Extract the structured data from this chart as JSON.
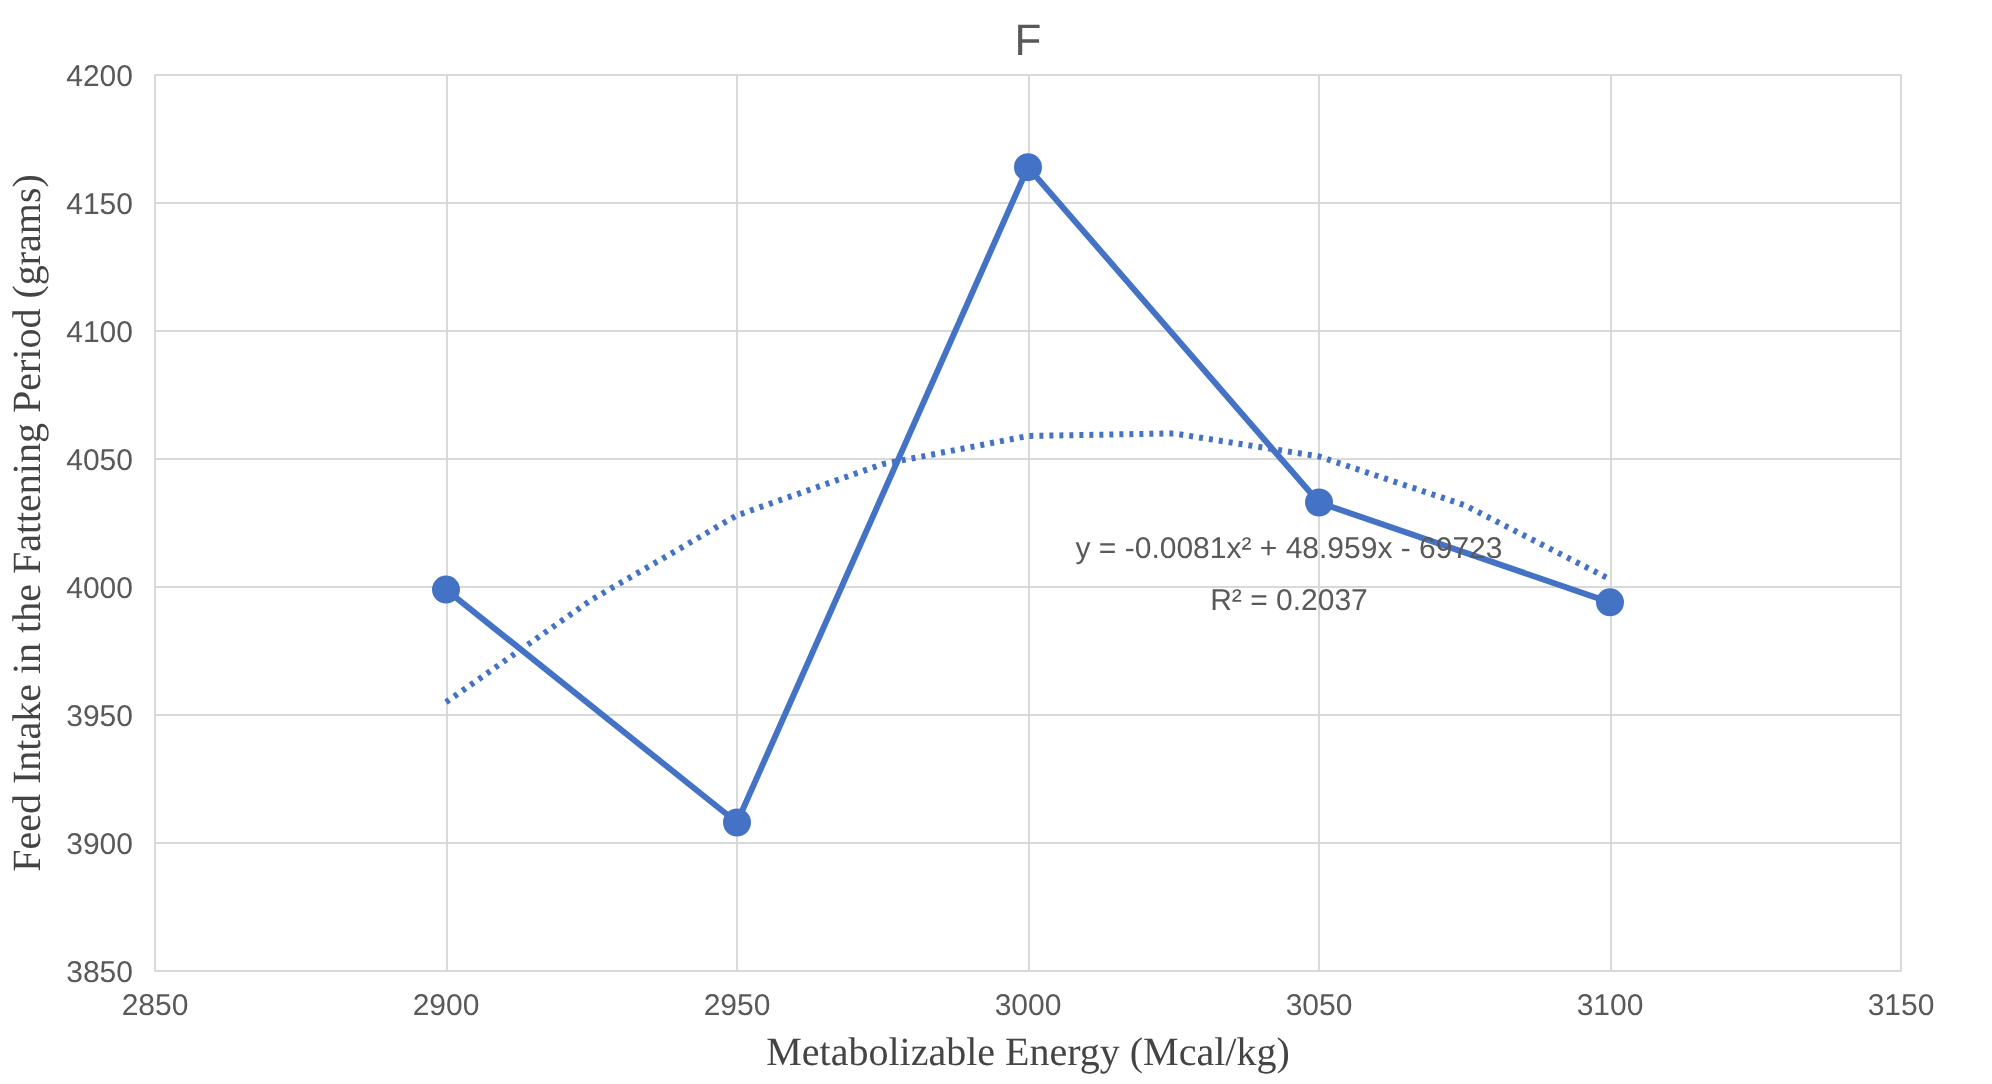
{
  "chart_data": {
    "type": "line",
    "title": "F",
    "xlabel": "Metabolizable Energy (Mcal/kg)",
    "ylabel": "Feed Intake in the Fattening Period (grams)",
    "x": [
      2900,
      2950,
      3000,
      3050,
      3100
    ],
    "series": [
      {
        "color": "#4472c4",
        "values": [
          3999,
          3908,
          4164,
          4033,
          3994
        ],
        "marker": "circle",
        "line_style": "solid"
      },
      {
        "type": "line",
        "color": "#4472c4",
        "x": [
          2900,
          2925,
          2950,
          2975,
          3000,
          3025,
          3050,
          3075,
          3100
        ],
        "values": [
          3955,
          3995,
          4028,
          4048,
          4059,
          4060,
          4051,
          4032,
          4003
        ],
        "marker": "none",
        "line_style": "dotted"
      }
    ],
    "xlim": [
      2850,
      3150
    ],
    "xticks": [
      2850,
      2900,
      2950,
      3000,
      3050,
      3100,
      3150
    ],
    "ylim": [
      3850,
      4200
    ],
    "yticks": [
      3850,
      3900,
      3950,
      4000,
      4050,
      4100,
      4150,
      4200
    ],
    "grid": true,
    "annotations": [
      "y = -0.0081x² + 48.959x - 69723",
      "R² = 0.2037"
    ]
  }
}
